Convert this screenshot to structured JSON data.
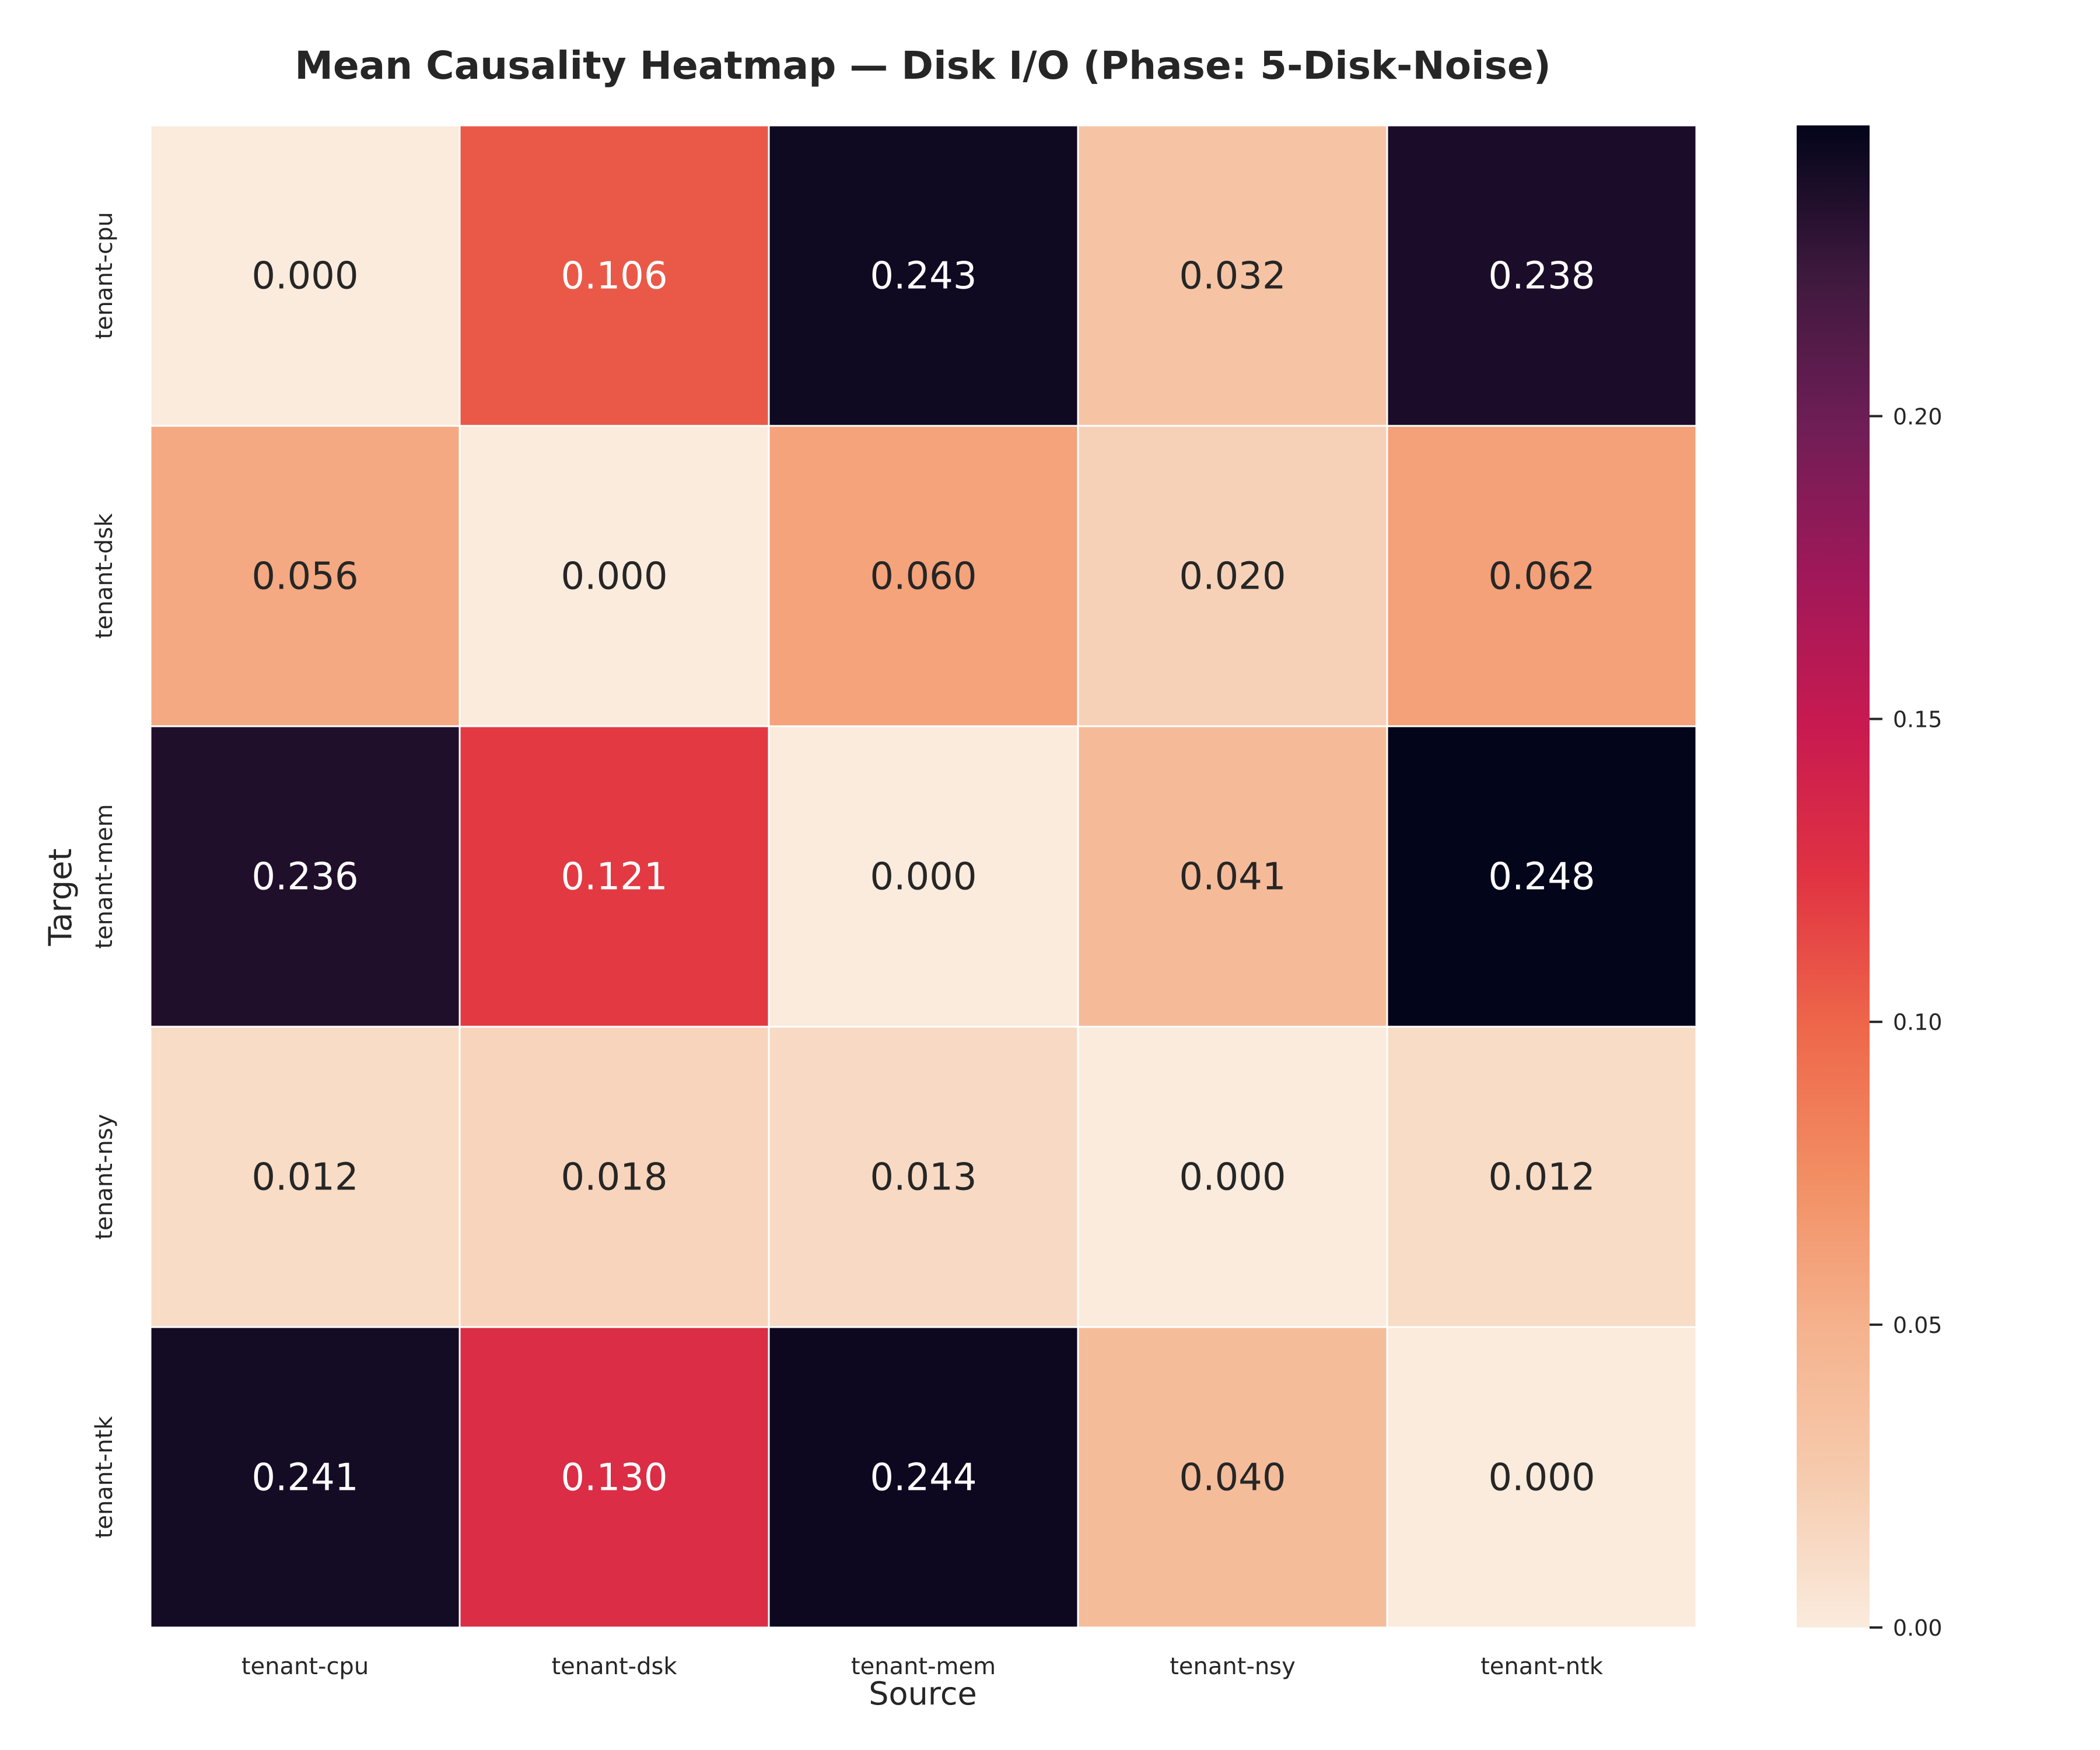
{
  "chart_data": {
    "type": "heatmap",
    "title": "Mean Causality Heatmap — Disk I/O (Phase: 5-Disk-Noise)",
    "xlabel": "Source",
    "ylabel": "Target",
    "x_categories": [
      "tenant-cpu",
      "tenant-dsk",
      "tenant-mem",
      "tenant-nsy",
      "tenant-ntk"
    ],
    "y_categories": [
      "tenant-cpu",
      "tenant-dsk",
      "tenant-mem",
      "tenant-nsy",
      "tenant-ntk"
    ],
    "values": [
      [
        0.0,
        0.106,
        0.243,
        0.032,
        0.238
      ],
      [
        0.056,
        0.0,
        0.06,
        0.02,
        0.062
      ],
      [
        0.236,
        0.121,
        0.0,
        0.041,
        0.248
      ],
      [
        0.012,
        0.018,
        0.013,
        0.0,
        0.012
      ],
      [
        0.241,
        0.13,
        0.244,
        0.04,
        0.0
      ]
    ],
    "value_format": "0.000",
    "colormap": "rocket_r",
    "vmin": 0.0,
    "vmax": 0.248,
    "colorbar_ticks": [
      0.0,
      0.05,
      0.1,
      0.15,
      0.2
    ],
    "colorbar_tick_labels": [
      "0.00",
      "0.05",
      "0.10",
      "0.15",
      "0.20"
    ],
    "grid": false,
    "cell_border_color": "#ffffff"
  }
}
